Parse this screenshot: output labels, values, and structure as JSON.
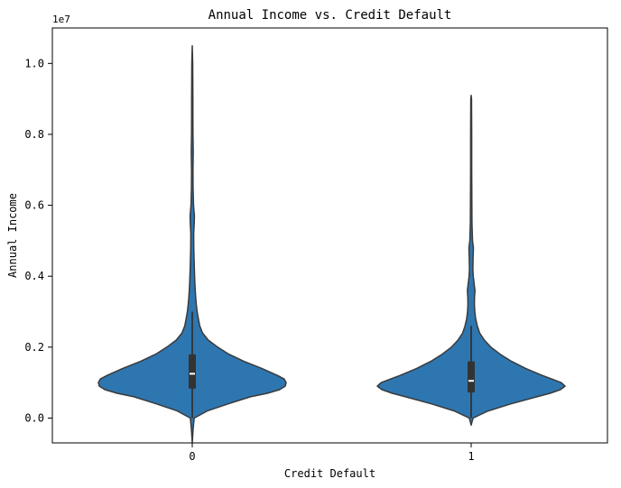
{
  "chart_data": {
    "type": "violin",
    "title": "Annual Income vs. Credit Default",
    "xlabel": "Credit Default",
    "ylabel": "Annual Income",
    "y_scale_label": "1e7",
    "y_multiplier": 10000000,
    "ylim": [
      -0.07,
      1.1
    ],
    "yticks": [
      0.0,
      0.2,
      0.4,
      0.6,
      0.8,
      1.0
    ],
    "ytick_labels": [
      "0.0",
      "0.2",
      "0.4",
      "0.6",
      "0.8",
      "1.0"
    ],
    "categories": [
      "0",
      "1"
    ],
    "grid": false,
    "color": "#2e76b0",
    "edge_color": "#3a3a3a",
    "violins": [
      {
        "category": "0",
        "min": 0.0,
        "q1": 0.083,
        "median": 0.125,
        "q3": 0.18,
        "whisker_low": 0.0,
        "whisker_high": 0.3,
        "max": 1.05,
        "density": [
          [
            -0.07,
            0.0
          ],
          [
            -0.03,
            0.01
          ],
          [
            0.0,
            0.02
          ],
          [
            0.02,
            0.16
          ],
          [
            0.04,
            0.38
          ],
          [
            0.06,
            0.62
          ],
          [
            0.07,
            0.8
          ],
          [
            0.08,
            0.93
          ],
          [
            0.09,
            0.99
          ],
          [
            0.1,
            1.0
          ],
          [
            0.11,
            0.98
          ],
          [
            0.12,
            0.91
          ],
          [
            0.14,
            0.74
          ],
          [
            0.16,
            0.55
          ],
          [
            0.18,
            0.39
          ],
          [
            0.2,
            0.27
          ],
          [
            0.22,
            0.17
          ],
          [
            0.24,
            0.11
          ],
          [
            0.26,
            0.08
          ],
          [
            0.28,
            0.065
          ],
          [
            0.3,
            0.052
          ],
          [
            0.32,
            0.043
          ],
          [
            0.34,
            0.037
          ],
          [
            0.36,
            0.032
          ],
          [
            0.38,
            0.028
          ],
          [
            0.4,
            0.025
          ],
          [
            0.44,
            0.02
          ],
          [
            0.48,
            0.016
          ],
          [
            0.52,
            0.015
          ],
          [
            0.55,
            0.021
          ],
          [
            0.57,
            0.023
          ],
          [
            0.6,
            0.013
          ],
          [
            0.65,
            0.009
          ],
          [
            0.7,
            0.008
          ],
          [
            0.75,
            0.011
          ],
          [
            0.8,
            0.008
          ],
          [
            0.85,
            0.007
          ],
          [
            0.9,
            0.007
          ],
          [
            0.95,
            0.006
          ],
          [
            1.0,
            0.005
          ],
          [
            1.05,
            0.0
          ]
        ]
      },
      {
        "category": "1",
        "min": 0.0,
        "q1": 0.072,
        "median": 0.105,
        "q3": 0.16,
        "whisker_low": 0.0,
        "whisker_high": 0.26,
        "max": 0.91,
        "density": [
          [
            -0.02,
            0.0
          ],
          [
            -0.01,
            0.01
          ],
          [
            0.0,
            0.02
          ],
          [
            0.02,
            0.18
          ],
          [
            0.04,
            0.42
          ],
          [
            0.06,
            0.7
          ],
          [
            0.07,
            0.84
          ],
          [
            0.08,
            0.95
          ],
          [
            0.09,
            1.0
          ],
          [
            0.1,
            0.96
          ],
          [
            0.11,
            0.86
          ],
          [
            0.12,
            0.76
          ],
          [
            0.14,
            0.58
          ],
          [
            0.16,
            0.43
          ],
          [
            0.18,
            0.31
          ],
          [
            0.2,
            0.21
          ],
          [
            0.22,
            0.14
          ],
          [
            0.24,
            0.09
          ],
          [
            0.26,
            0.065
          ],
          [
            0.28,
            0.048
          ],
          [
            0.3,
            0.038
          ],
          [
            0.32,
            0.035
          ],
          [
            0.34,
            0.036
          ],
          [
            0.36,
            0.04
          ],
          [
            0.37,
            0.036
          ],
          [
            0.4,
            0.022
          ],
          [
            0.42,
            0.018
          ],
          [
            0.45,
            0.02
          ],
          [
            0.48,
            0.024
          ],
          [
            0.5,
            0.014
          ],
          [
            0.55,
            0.009
          ],
          [
            0.6,
            0.008
          ],
          [
            0.65,
            0.007
          ],
          [
            0.7,
            0.006
          ],
          [
            0.75,
            0.006
          ],
          [
            0.8,
            0.006
          ],
          [
            0.85,
            0.005
          ],
          [
            0.9,
            0.004
          ],
          [
            0.91,
            0.0
          ]
        ]
      }
    ]
  }
}
